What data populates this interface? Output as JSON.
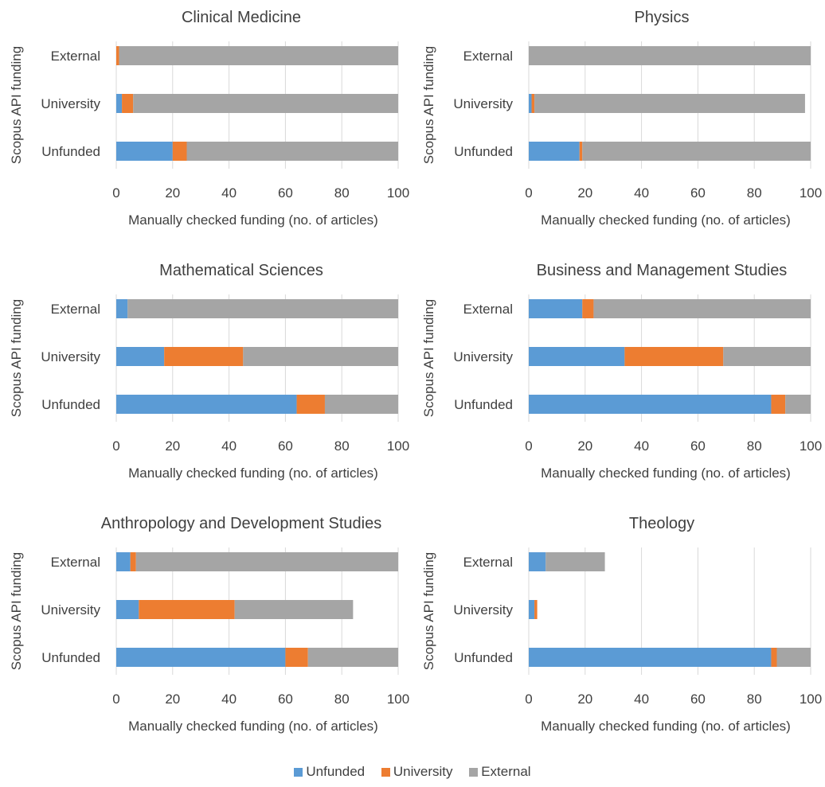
{
  "chart_data": [
    {
      "type": "bar",
      "orientation": "horizontal",
      "stacked": true,
      "title": "Clinical Medicine",
      "xlabel": "Manually checked funding (no. of articles)",
      "ylabel": "Scopus API funding",
      "categories": [
        "External",
        "University",
        "Unfunded"
      ],
      "series": [
        {
          "name": "Unfunded",
          "values": [
            0,
            2,
            20
          ]
        },
        {
          "name": "University",
          "values": [
            1,
            4,
            5
          ]
        },
        {
          "name": "External",
          "values": [
            99,
            94,
            75
          ]
        }
      ],
      "xlim": [
        0,
        100
      ],
      "xticks": [
        "0",
        "20",
        "40",
        "60",
        "80",
        "100"
      ],
      "grid": true
    },
    {
      "type": "bar",
      "orientation": "horizontal",
      "stacked": true,
      "title": "Physics",
      "xlabel": "Manually checked funding (no. of articles)",
      "ylabel": "Scopus API funding",
      "categories": [
        "External",
        "University",
        "Unfunded"
      ],
      "series": [
        {
          "name": "Unfunded",
          "values": [
            0,
            1,
            18
          ]
        },
        {
          "name": "University",
          "values": [
            0,
            1,
            1
          ]
        },
        {
          "name": "External",
          "values": [
            100,
            96,
            81
          ]
        }
      ],
      "xlim": [
        0,
        100
      ],
      "xticks": [
        "0",
        "20",
        "40",
        "60",
        "80",
        "100"
      ],
      "grid": true
    },
    {
      "type": "bar",
      "orientation": "horizontal",
      "stacked": true,
      "title": "Mathematical Sciences",
      "xlabel": "Manually checked funding (no. of articles)",
      "ylabel": "Scopus API funding",
      "categories": [
        "External",
        "University",
        "Unfunded"
      ],
      "series": [
        {
          "name": "Unfunded",
          "values": [
            4,
            17,
            64
          ]
        },
        {
          "name": "University",
          "values": [
            0,
            28,
            10
          ]
        },
        {
          "name": "External",
          "values": [
            96,
            55,
            26
          ]
        }
      ],
      "xlim": [
        0,
        100
      ],
      "xticks": [
        "0",
        "20",
        "40",
        "60",
        "80",
        "100"
      ],
      "grid": true
    },
    {
      "type": "bar",
      "orientation": "horizontal",
      "stacked": true,
      "title": "Business and Management Studies",
      "xlabel": "Manually checked funding (no. of articles)",
      "ylabel": "Scopus API funding",
      "categories": [
        "External",
        "University",
        "Unfunded"
      ],
      "series": [
        {
          "name": "Unfunded",
          "values": [
            19,
            34,
            86
          ]
        },
        {
          "name": "University",
          "values": [
            4,
            35,
            5
          ]
        },
        {
          "name": "External",
          "values": [
            77,
            31,
            9
          ]
        }
      ],
      "xlim": [
        0,
        100
      ],
      "xticks": [
        "0",
        "20",
        "40",
        "60",
        "80",
        "100"
      ],
      "grid": true
    },
    {
      "type": "bar",
      "orientation": "horizontal",
      "stacked": true,
      "title": "Anthropology and Development Studies",
      "xlabel": "Manually checked funding (no. of articles)",
      "ylabel": "Scopus API funding",
      "categories": [
        "External",
        "University",
        "Unfunded"
      ],
      "series": [
        {
          "name": "Unfunded",
          "values": [
            5,
            8,
            60
          ]
        },
        {
          "name": "University",
          "values": [
            2,
            34,
            8
          ]
        },
        {
          "name": "External",
          "values": [
            93,
            42,
            32
          ]
        }
      ],
      "xlim": [
        0,
        100
      ],
      "xticks": [
        "0",
        "20",
        "40",
        "60",
        "80",
        "100"
      ],
      "grid": true
    },
    {
      "type": "bar",
      "orientation": "horizontal",
      "stacked": true,
      "title": "Theology",
      "xlabel": "Manually checked funding (no. of articles)",
      "ylabel": "Scopus API funding",
      "categories": [
        "External",
        "University",
        "Unfunded"
      ],
      "series": [
        {
          "name": "Unfunded",
          "values": [
            6,
            2,
            86
          ]
        },
        {
          "name": "University",
          "values": [
            0,
            1,
            2
          ]
        },
        {
          "name": "External",
          "values": [
            21,
            0,
            12
          ]
        }
      ],
      "xlim": [
        0,
        100
      ],
      "xticks": [
        "0",
        "20",
        "40",
        "60",
        "80",
        "100"
      ],
      "grid": true
    }
  ],
  "legend": {
    "placement": "bottom",
    "items": [
      {
        "label": "Unfunded",
        "color": "#5b9bd5"
      },
      {
        "label": "University",
        "color": "#ed7d31"
      },
      {
        "label": "External",
        "color": "#a5a5a5"
      }
    ]
  },
  "colors": {
    "Unfunded": "#5b9bd5",
    "University": "#ed7d31",
    "External": "#a5a5a5",
    "grid": "#d9d9d9",
    "text": "#404040"
  }
}
